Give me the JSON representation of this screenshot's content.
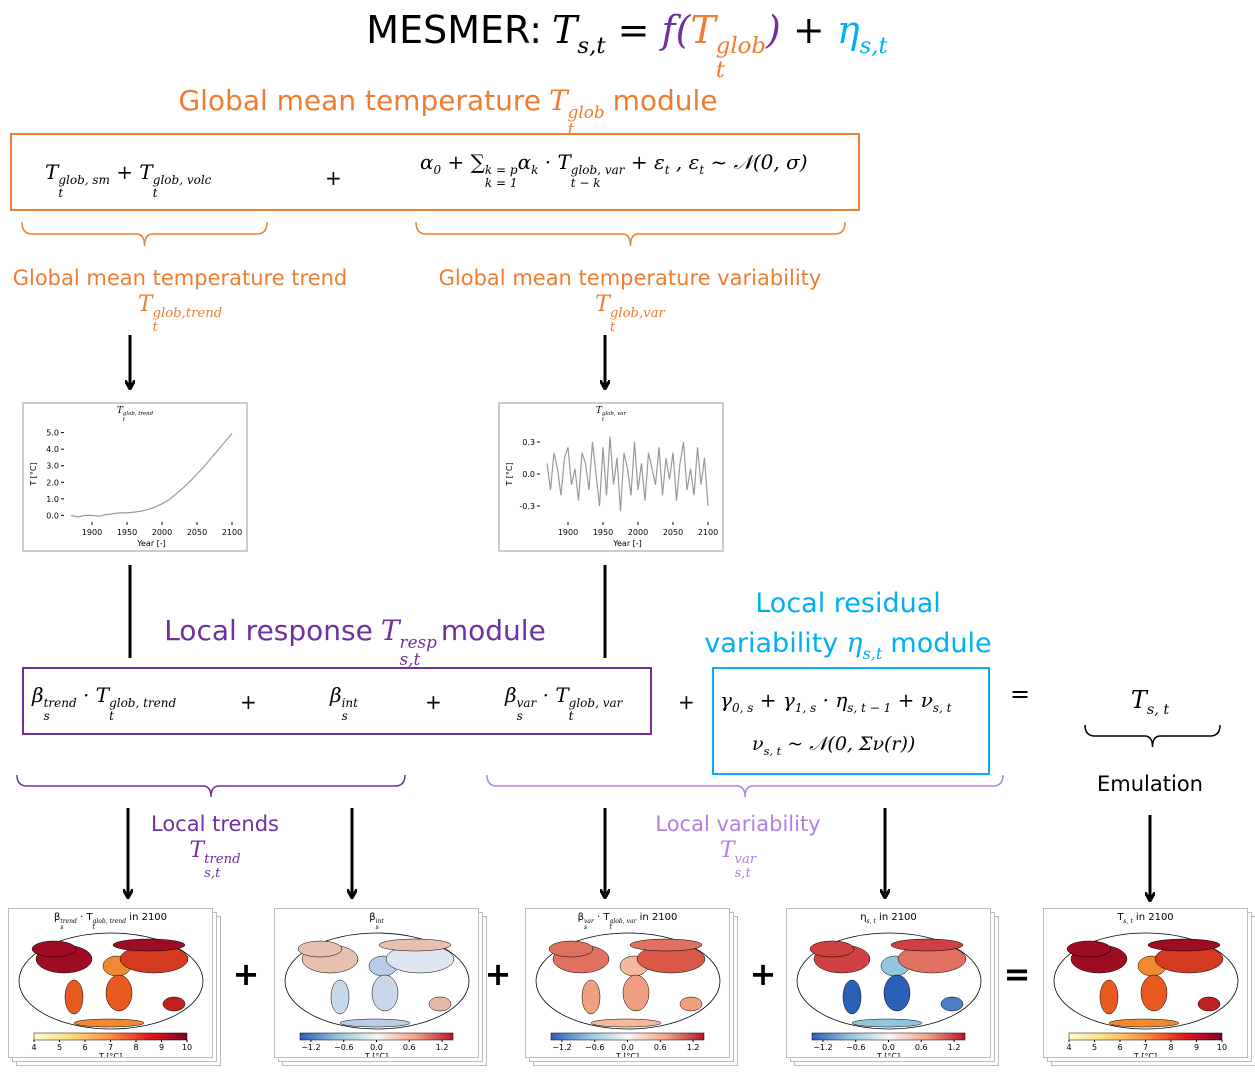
{
  "title": {
    "prefix": "MESMER:",
    "formula": [
      {
        "t": "T",
        "sub": "s,t"
      },
      {
        "t": " = "
      },
      {
        "t": "f",
        "color": "#7030a0"
      },
      {
        "t": "(",
        "color": "#7030a0"
      },
      {
        "t": "T",
        "sup": "glob",
        "sub": "t",
        "color": "#ed7d31"
      },
      {
        "t": ")",
        "color": "#7030a0"
      },
      {
        "t": " + "
      },
      {
        "t": "η",
        "sub": "s,t",
        "color": "#00b0f0"
      }
    ]
  },
  "global_module": {
    "color": "#ed7d31",
    "heading_text": "Global mean temperature",
    "heading_symbol": [
      {
        "t": "T",
        "sup": "glob",
        "sub": "t"
      }
    ],
    "heading_end": "module",
    "formula_left": [
      {
        "t": "T",
        "sup": "glob, sm",
        "sub": "t"
      },
      {
        "t": " + "
      },
      {
        "t": "T",
        "sup": "glob, volc",
        "sub": "t"
      }
    ],
    "plus": "+",
    "formula_right": [
      {
        "t": "α",
        "sub": "0"
      },
      {
        "t": " + "
      },
      {
        "t": "∑",
        "sup": "k = p",
        "sub": "k = 1"
      },
      {
        "t": "α",
        "sub": "k"
      },
      {
        "t": " · "
      },
      {
        "t": "T",
        "sup": "glob, var",
        "sub": "t − k"
      },
      {
        "t": " + "
      },
      {
        "t": "ε",
        "sub": "t"
      },
      {
        "t": " ,    "
      },
      {
        "t": "ε",
        "sub": "t"
      },
      {
        "t": " ~ 𝒩(0, σ)"
      }
    ]
  },
  "trend_label": {
    "text": "Global mean temperature trend",
    "symbol": [
      {
        "t": "T",
        "sup": "glob,trend",
        "sub": "t"
      }
    ]
  },
  "var_label": {
    "text": "Global mean temperature variability",
    "symbol": [
      {
        "t": "T",
        "sup": "glob,var",
        "sub": "t"
      }
    ]
  },
  "charts": [
    {
      "title": [
        {
          "t": "T",
          "sup": "glob, trend",
          "sub": "t"
        }
      ],
      "ylabel": "T [°C]",
      "xlabel": "Year [-]",
      "color": "#999999",
      "x": [
        1870,
        1880,
        1890,
        1900,
        1910,
        1920,
        1930,
        1940,
        1950,
        1960,
        1970,
        1980,
        1990,
        2000,
        2010,
        2020,
        2030,
        2040,
        2050,
        2060,
        2070,
        2080,
        2090,
        2100
      ],
      "values": [
        0.0,
        -0.1,
        0.0,
        0.0,
        -0.05,
        0.05,
        0.1,
        0.15,
        0.15,
        0.2,
        0.25,
        0.35,
        0.5,
        0.7,
        0.95,
        1.3,
        1.65,
        2.05,
        2.5,
        2.95,
        3.45,
        3.95,
        4.45,
        4.95
      ],
      "xlim": [
        1860,
        2110
      ],
      "ylim": [
        -0.4,
        5.4
      ],
      "xticks": [
        1900,
        1950,
        2000,
        2050,
        2100
      ],
      "yticks": [
        {
          "value": 0,
          "label": "0.0"
        },
        {
          "value": 1,
          "label": "1.0"
        },
        {
          "value": 2,
          "label": "2.0"
        },
        {
          "value": 3,
          "label": "3.0"
        },
        {
          "value": 4,
          "label": "4.0"
        },
        {
          "value": 5,
          "label": "5.0"
        }
      ]
    },
    {
      "title": [
        {
          "t": "T",
          "sup": "glob, var",
          "sub": "t"
        }
      ],
      "ylabel": "T [°C]",
      "xlabel": "Year [-]",
      "color": "#999999",
      "x": [
        1870,
        1875,
        1880,
        1885,
        1890,
        1895,
        1900,
        1905,
        1910,
        1915,
        1920,
        1925,
        1930,
        1935,
        1940,
        1945,
        1950,
        1955,
        1960,
        1965,
        1970,
        1975,
        1980,
        1985,
        1990,
        1995,
        2000,
        2005,
        2010,
        2015,
        2020,
        2025,
        2030,
        2035,
        2040,
        2045,
        2050,
        2055,
        2060,
        2065,
        2070,
        2075,
        2080,
        2085,
        2090,
        2095,
        2100
      ],
      "values": [
        0.1,
        -0.15,
        0.2,
        0.05,
        -0.2,
        0.15,
        0.25,
        -0.1,
        0.05,
        -0.25,
        0.2,
        0.1,
        -0.15,
        0.3,
        0.0,
        -0.3,
        0.25,
        -0.2,
        0.35,
        -0.1,
        0.15,
        -0.35,
        0.2,
        0.05,
        -0.2,
        0.3,
        -0.15,
        0.1,
        -0.25,
        0.2,
        0.05,
        -0.1,
        0.25,
        -0.2,
        0.15,
        -0.05,
        0.2,
        -0.25,
        0.1,
        0.3,
        -0.15,
        0.05,
        -0.2,
        0.25,
        -0.1,
        0.15,
        -0.3
      ],
      "xlim": [
        1860,
        2110
      ],
      "ylim": [
        -0.45,
        0.45
      ],
      "xticks": [
        1900,
        1950,
        2000,
        2050,
        2100
      ],
      "yticks": [
        -0.3,
        {
          "value": 0,
          "label": "0.0"
        },
        0.3
      ]
    }
  ],
  "local_response": {
    "color": "#7030a0",
    "heading_text": "Local response",
    "heading_symbol": [
      {
        "t": "T",
        "sup": "resp",
        "sub": "s,t"
      }
    ],
    "heading_end": "module",
    "term1": [
      {
        "t": "β",
        "sup": "trend",
        "sub": "s"
      },
      {
        "t": " · "
      },
      {
        "t": "T",
        "sup": "glob, trend",
        "sub": "t"
      }
    ],
    "plus1": "+",
    "term2": [
      {
        "t": "β",
        "sup": "int",
        "sub": "s"
      }
    ],
    "plus2": "+",
    "term3": [
      {
        "t": "β",
        "sup": "var",
        "sub": "s"
      },
      {
        "t": " · "
      },
      {
        "t": "T",
        "sup": "glob, var",
        "sub": "t"
      }
    ]
  },
  "between_plus": "+",
  "residual": {
    "color": "#00b0f0",
    "heading_line1": "Local residual",
    "heading_line2": "variability",
    "heading_symbol": [
      {
        "t": "η",
        "sub": "s,t"
      }
    ],
    "heading_end": "module",
    "line1": [
      {
        "t": "γ",
        "sub": "0, s"
      },
      {
        "t": " + "
      },
      {
        "t": "γ",
        "sub": "1, s"
      },
      {
        "t": " · "
      },
      {
        "t": "η",
        "sub": "s, t − 1"
      },
      {
        "t": " + "
      },
      {
        "t": "ν",
        "sub": "s, t"
      }
    ],
    "line2": [
      {
        "t": "ν",
        "sub": "s, t"
      },
      {
        "t": " ~ 𝒩(0, Σ"
      },
      {
        "t": "ν",
        "sub": ""
      },
      {
        "t": "(r))"
      }
    ]
  },
  "equals": "=",
  "emulation": {
    "symbol": [
      {
        "t": "T",
        "sub": "s, t"
      }
    ],
    "label": "Emulation"
  },
  "local_trends": {
    "color": "#7030a0",
    "text": "Local trends",
    "symbol": [
      {
        "t": "T",
        "sup": "trend",
        "sub": "s,t"
      }
    ]
  },
  "local_variability": {
    "color": "#b080e0",
    "text": "Local variability",
    "symbol": [
      {
        "t": "T",
        "sup": "var",
        "sub": "s,t"
      }
    ]
  },
  "maps": [
    {
      "title": [
        {
          "t": "β",
          "sup": "trend",
          "sub": "s"
        },
        {
          "t": " · "
        },
        {
          "t": "T",
          "sup": "glob, trend",
          "sub": "t"
        },
        {
          "t": " in 2100"
        }
      ],
      "cmap": "YlOrRd",
      "clim": [
        4,
        10
      ],
      "ticks": [
        4,
        5,
        6,
        7,
        8,
        9,
        10
      ],
      "label": "T [°C]"
    },
    {
      "title": [
        {
          "t": "β",
          "sup": "int",
          "sub": "s"
        }
      ],
      "cmap": "RdBu_r",
      "clim": [
        -1.4,
        1.4
      ],
      "ticks": [
        {
          "value": -1.2,
          "label": "−1.2"
        },
        {
          "value": -0.6,
          "label": "−0.6"
        },
        {
          "value": 0,
          "label": "0.0"
        },
        0.6,
        1.2
      ],
      "label": "T [°C]"
    },
    {
      "title": [
        {
          "t": "β",
          "sup": "var",
          "sub": "s"
        },
        {
          "t": " · "
        },
        {
          "t": "T",
          "sup": "glob, var",
          "sub": "t"
        },
        {
          "t": " in 2100"
        }
      ],
      "cmap": "RdBu_r",
      "clim": [
        -1.4,
        1.4
      ],
      "ticks": [
        {
          "value": -1.2,
          "label": "−1.2"
        },
        {
          "value": -0.6,
          "label": "−0.6"
        },
        {
          "value": 0,
          "label": "0.0"
        },
        0.6,
        1.2
      ],
      "label": "T [°C]"
    },
    {
      "title": [
        {
          "t": "η",
          "sub": "s, t"
        },
        {
          "t": " in 2100"
        }
      ],
      "cmap": "RdBu_r",
      "clim": [
        -1.4,
        1.4
      ],
      "ticks": [
        {
          "value": -1.2,
          "label": "−1.2"
        },
        {
          "value": -0.6,
          "label": "−0.6"
        },
        {
          "value": 0,
          "label": "0.0"
        },
        0.6,
        1.2
      ],
      "label": "T [°C]"
    },
    {
      "title": [
        {
          "t": "T",
          "sub": "s, t"
        },
        {
          "t": " in 2100"
        }
      ],
      "cmap": "YlOrRd",
      "clim": [
        4,
        10
      ],
      "ticks": [
        4,
        5,
        6,
        7,
        8,
        9,
        10
      ],
      "label": "T [°C]"
    }
  ],
  "map_operators": [
    "+",
    "+",
    "+",
    "="
  ]
}
